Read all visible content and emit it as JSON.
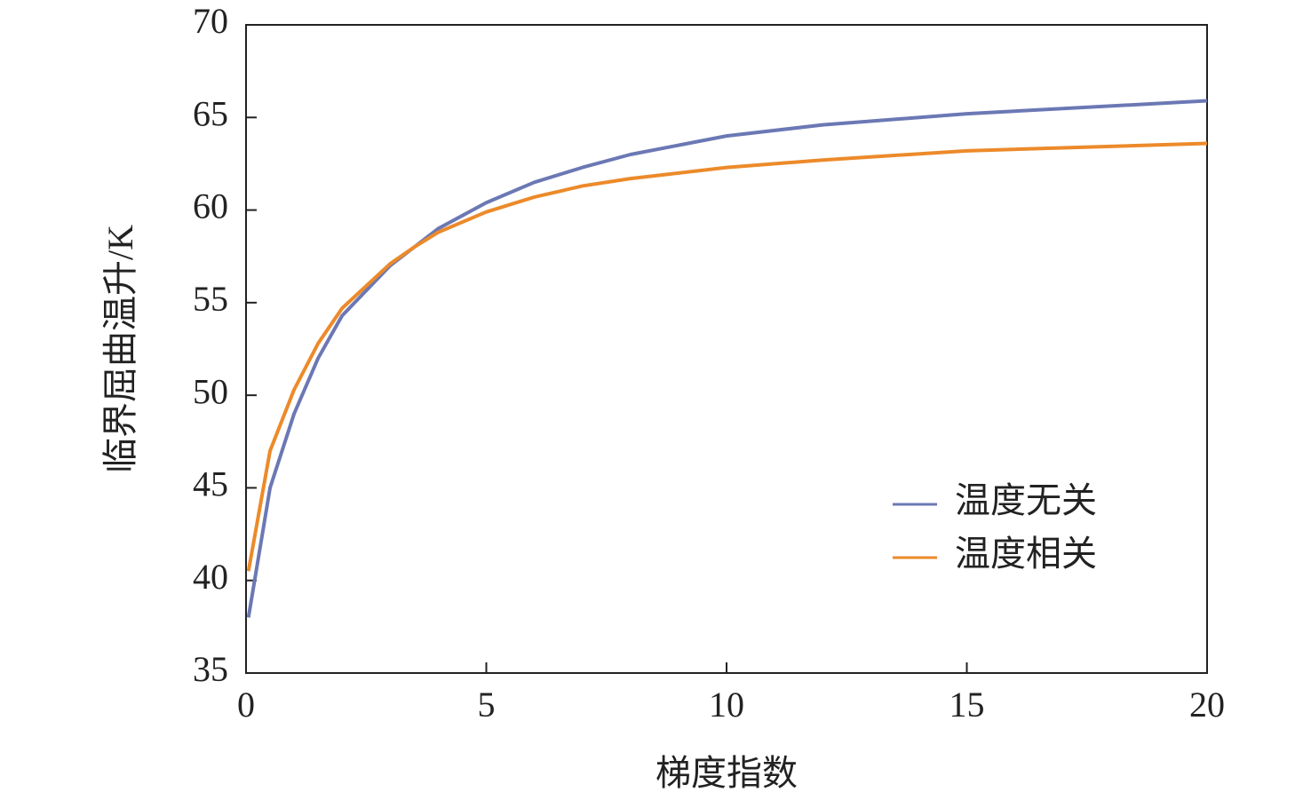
{
  "chart_data": {
    "type": "line",
    "x_label": "梯度指数",
    "y_label": "临界屈曲温升/K",
    "x": [
      0.05,
      0.5,
      1,
      1.5,
      2,
      3,
      3.5,
      4,
      5,
      6,
      7,
      8,
      10,
      12,
      15,
      20
    ],
    "series": [
      {
        "name": "温度无关",
        "color": "#6b78b4",
        "values": [
          38,
          45,
          49,
          52,
          54.3,
          57,
          58,
          59,
          60.4,
          61.5,
          62.3,
          63,
          64,
          64.6,
          65.2,
          65.9
        ]
      },
      {
        "name": "温度相关",
        "color": "#ec8a2a",
        "values": [
          40.5,
          47,
          50.3,
          52.8,
          54.7,
          57.1,
          58,
          58.8,
          59.9,
          60.7,
          61.3,
          61.7,
          62.3,
          62.7,
          63.2,
          63.6
        ]
      }
    ],
    "xlim": [
      0,
      20
    ],
    "xticks": [
      0,
      5,
      10,
      15,
      20
    ],
    "ylim": [
      35,
      70
    ],
    "yticks": [
      35,
      40,
      45,
      50,
      55,
      60,
      65,
      70
    ],
    "legend": "center-right"
  }
}
